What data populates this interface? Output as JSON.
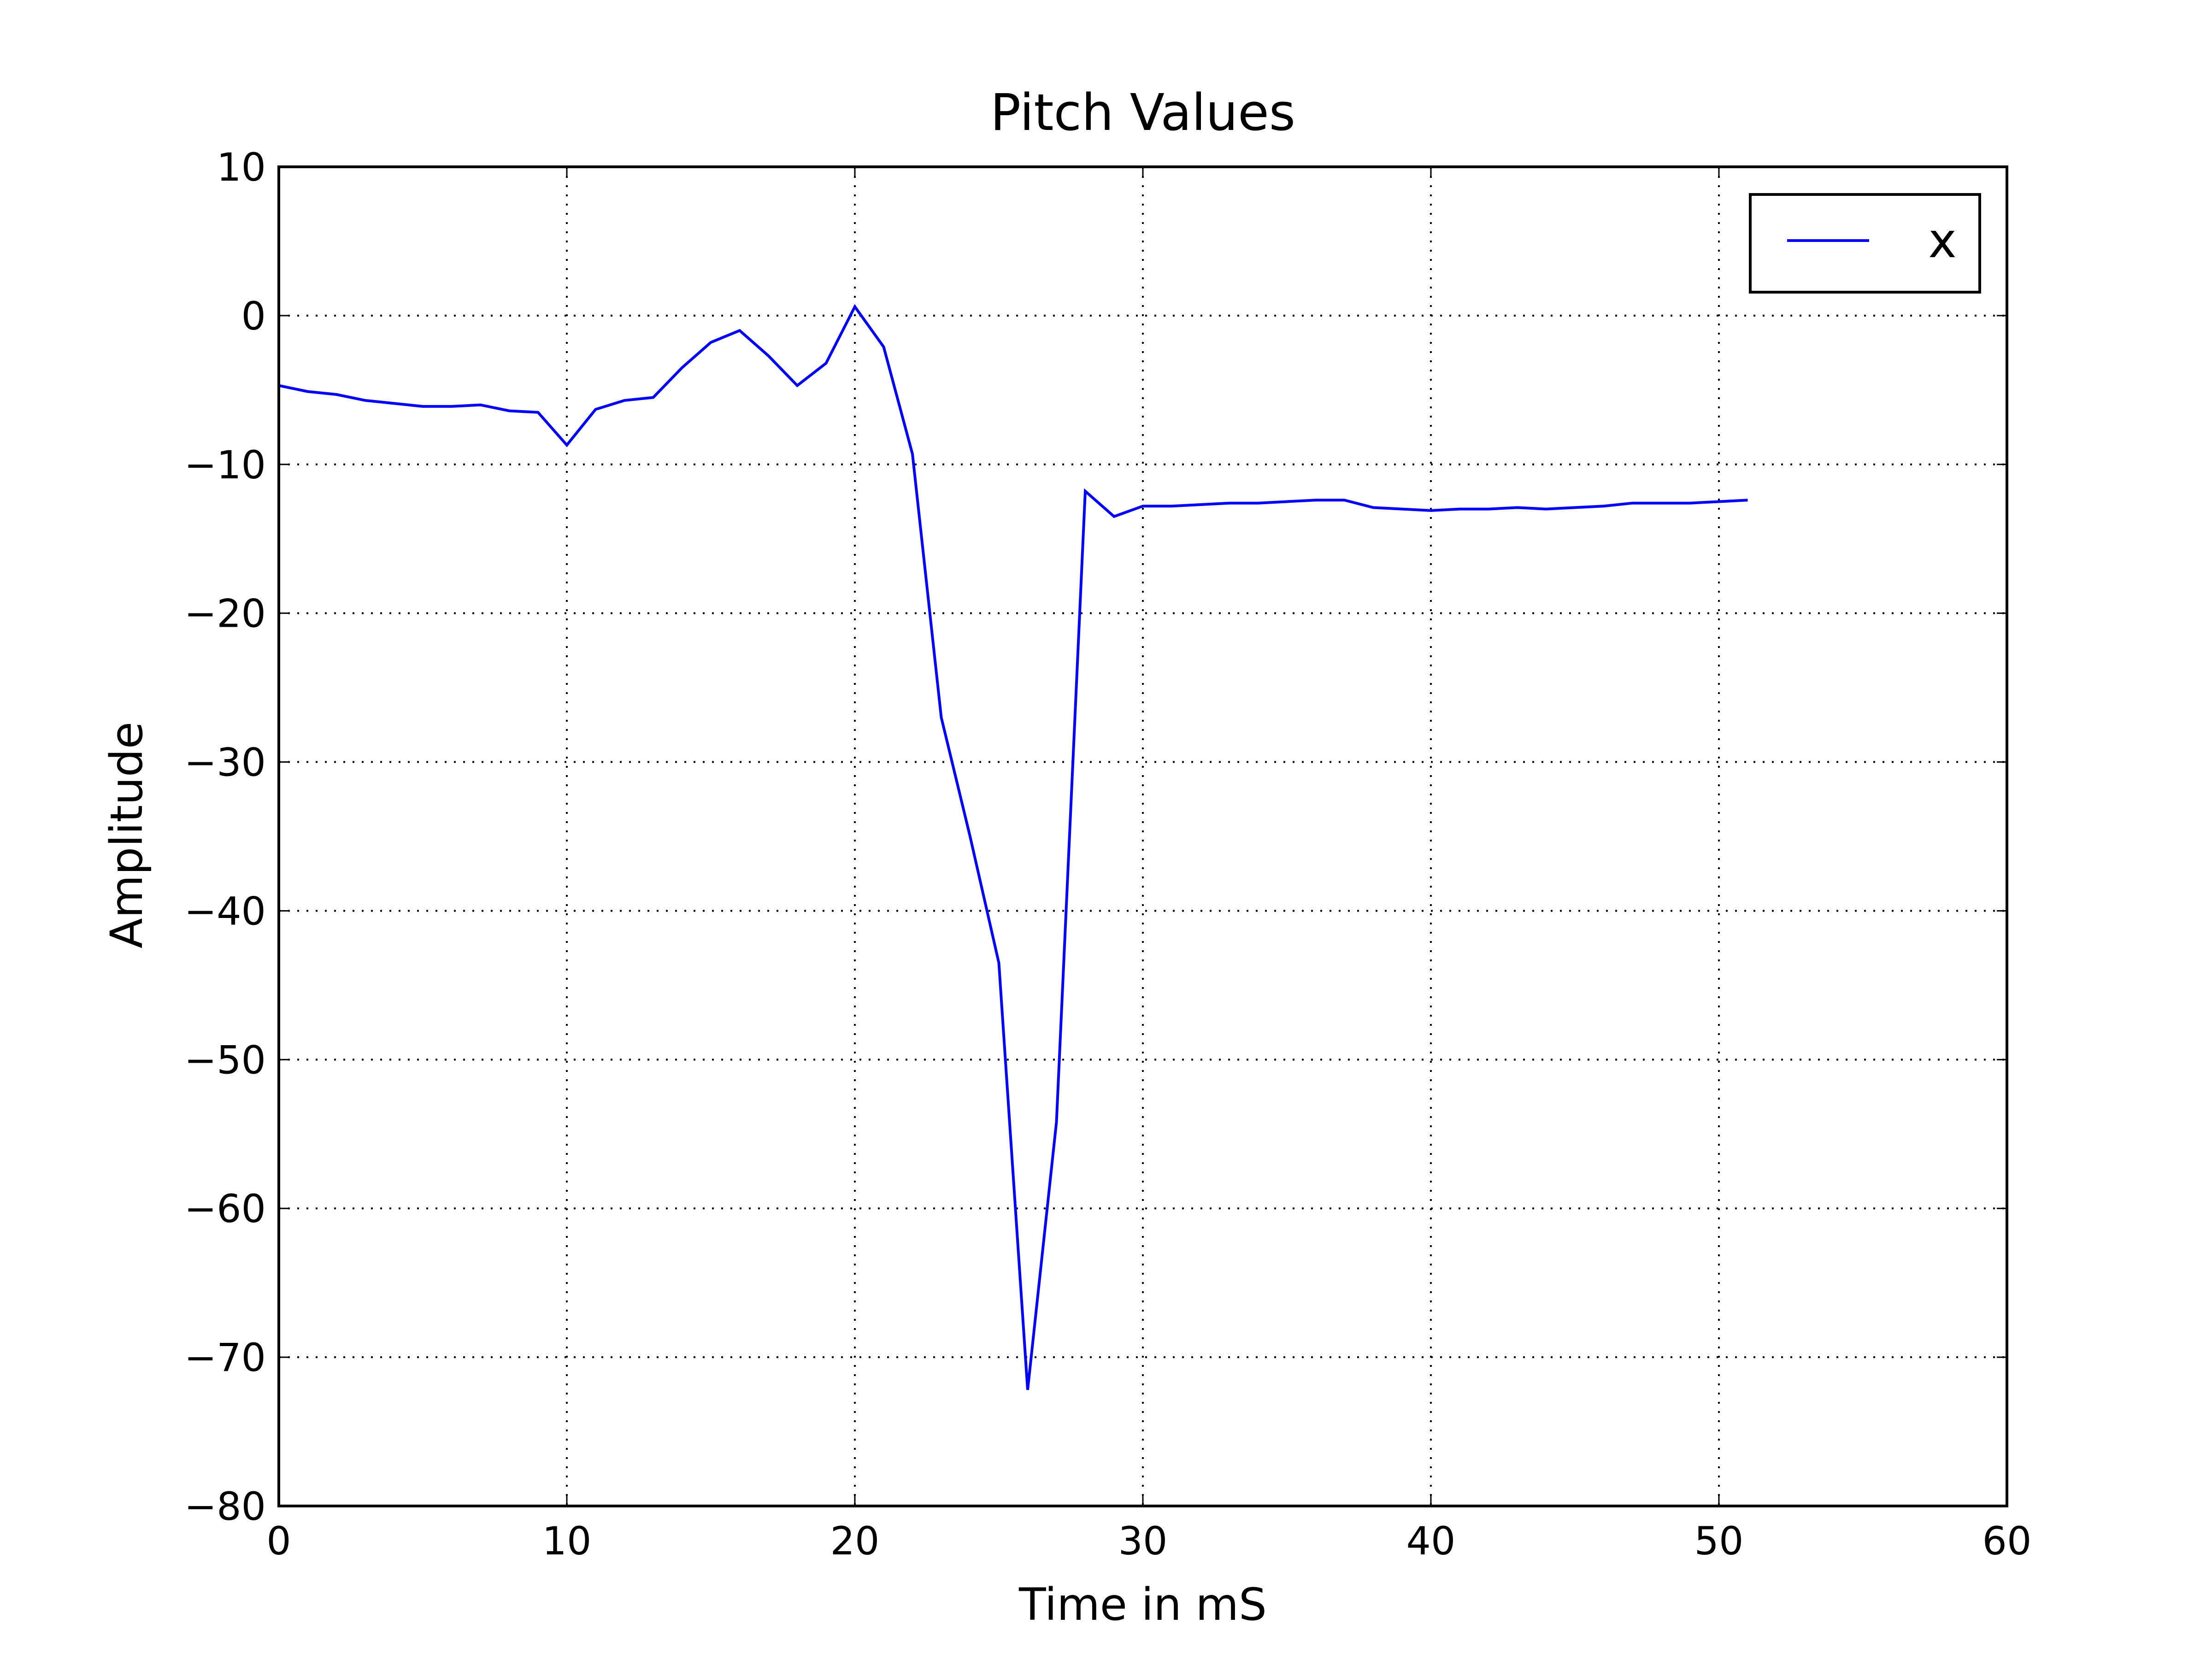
{
  "chart_data": {
    "type": "line",
    "title": "Pitch Values",
    "xlabel": "Time in mS",
    "ylabel": "Amplitude",
    "xlim": [
      0,
      60
    ],
    "ylim": [
      -80,
      10
    ],
    "xticks": [
      0,
      10,
      20,
      30,
      40,
      50,
      60
    ],
    "xtick_labels": [
      "0",
      "10",
      "20",
      "30",
      "40",
      "50",
      "60"
    ],
    "yticks": [
      10,
      0,
      -10,
      -20,
      -30,
      -40,
      -50,
      -60,
      -70,
      -80
    ],
    "ytick_labels": [
      "10",
      "0",
      "−10",
      "−20",
      "−30",
      "−40",
      "−50",
      "−60",
      "−70",
      "−80"
    ],
    "grid": true,
    "legend_position": "top-right",
    "series": [
      {
        "name": "x",
        "color": "#0000ff",
        "x": [
          0,
          1,
          2,
          3,
          4,
          5,
          6,
          7,
          8,
          9,
          10,
          11,
          12,
          13,
          14,
          15,
          16,
          17,
          18,
          19,
          20,
          21,
          22,
          23,
          24,
          25,
          26,
          27,
          28,
          29,
          30,
          31,
          32,
          33,
          34,
          35,
          36,
          37,
          38,
          39,
          40,
          41,
          42,
          43,
          44,
          45,
          46,
          47,
          48,
          49,
          50,
          51
        ],
        "y": [
          -4.7,
          -5.1,
          -5.3,
          -5.7,
          -5.9,
          -6.1,
          -6.1,
          -6.0,
          -6.4,
          -6.5,
          -8.7,
          -6.3,
          -5.7,
          -5.5,
          -3.5,
          -1.8,
          -1.0,
          -2.7,
          -4.7,
          -3.2,
          0.6,
          -2.1,
          -9.3,
          -27.0,
          -35.0,
          -43.5,
          -72.2,
          -54.2,
          -11.8,
          -13.5,
          -12.8,
          -12.8,
          -12.7,
          -12.6,
          -12.6,
          -12.5,
          -12.4,
          -12.4,
          -12.9,
          -13.0,
          -13.1,
          -13.0,
          -13.0,
          -12.9,
          -13.0,
          -12.9,
          -12.8,
          -12.6,
          -12.6,
          -12.6,
          -12.5,
          -12.4
        ]
      }
    ]
  }
}
